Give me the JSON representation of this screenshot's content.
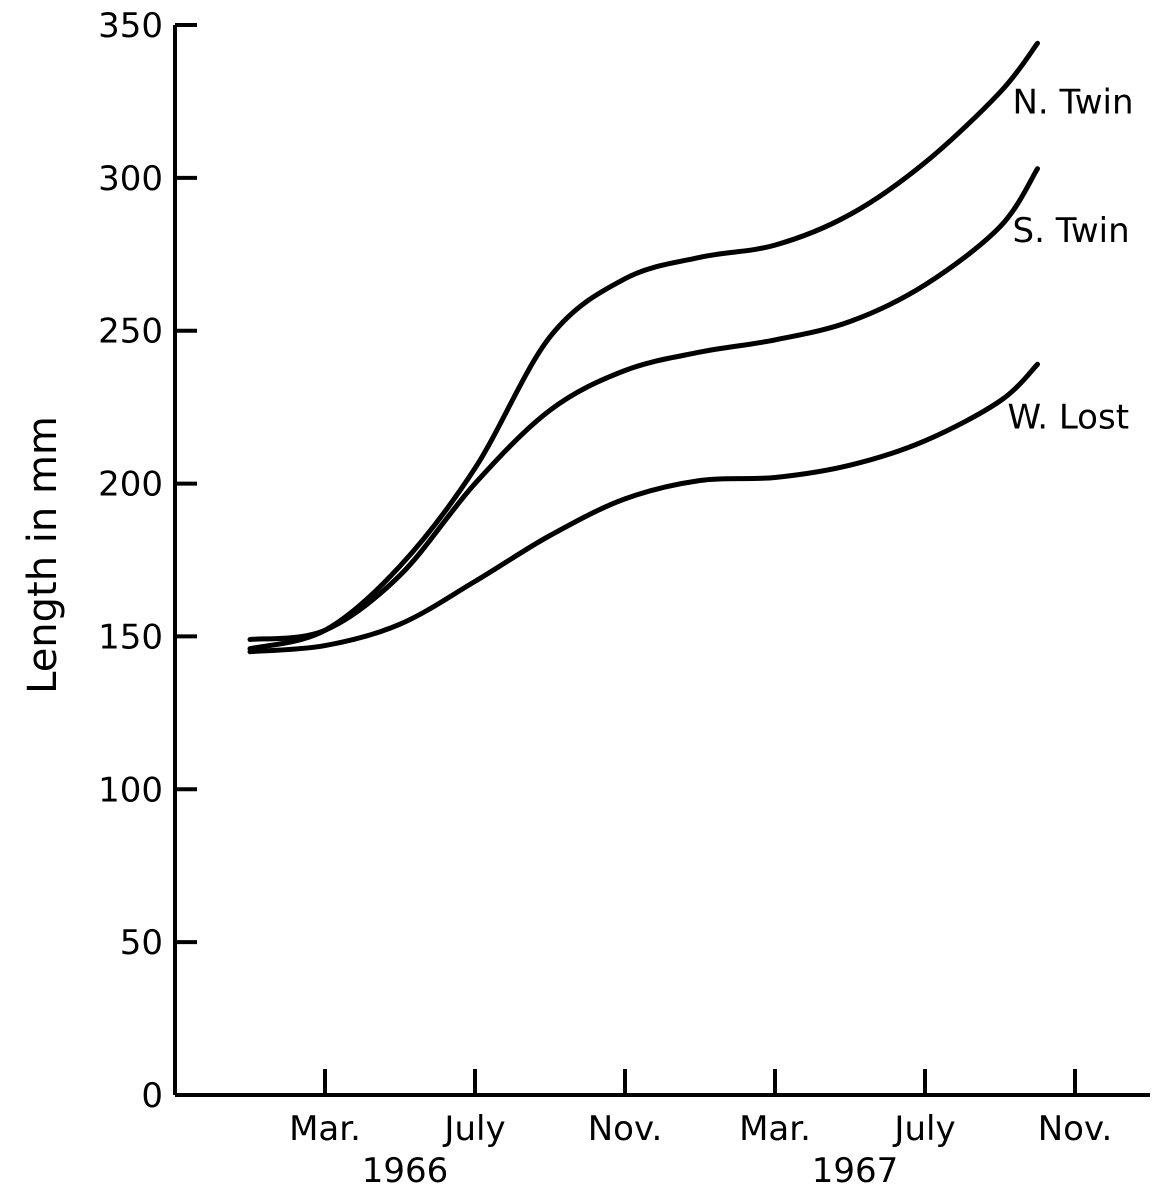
{
  "chart_data": {
    "type": "line",
    "title": "",
    "xlabel": "",
    "ylabel": "Length in mm",
    "ylim": [
      0,
      350
    ],
    "yticks": [
      0,
      50,
      100,
      150,
      200,
      250,
      300,
      350
    ],
    "grid": false,
    "x_ticks": [
      {
        "label": "Mar.",
        "month": 3,
        "year": 1966
      },
      {
        "label": "July",
        "month": 7,
        "year": 1966
      },
      {
        "label": "Nov.",
        "month": 11,
        "year": 1966
      },
      {
        "label": "Mar.",
        "month": 3,
        "year": 1967
      },
      {
        "label": "July",
        "month": 7,
        "year": 1967
      },
      {
        "label": "Nov.",
        "month": 11,
        "year": 1967
      }
    ],
    "year_labels": [
      {
        "label": "1966",
        "year": 1966
      },
      {
        "label": "1967",
        "year": 1967
      }
    ],
    "series": [
      {
        "name": "N. Twin",
        "points": [
          {
            "x": "1966-01",
            "y": 146
          },
          {
            "x": "1966-03",
            "y": 152
          },
          {
            "x": "1966-05",
            "y": 173
          },
          {
            "x": "1966-07",
            "y": 205
          },
          {
            "x": "1966-09",
            "y": 248
          },
          {
            "x": "1966-11",
            "y": 267
          },
          {
            "x": "1967-01",
            "y": 274
          },
          {
            "x": "1967-03",
            "y": 278
          },
          {
            "x": "1967-05",
            "y": 288
          },
          {
            "x": "1967-07",
            "y": 305
          },
          {
            "x": "1967-09",
            "y": 328
          },
          {
            "x": "1967-10",
            "y": 344
          }
        ]
      },
      {
        "name": "S. Twin",
        "points": [
          {
            "x": "1966-01",
            "y": 149
          },
          {
            "x": "1966-03",
            "y": 152
          },
          {
            "x": "1966-05",
            "y": 170
          },
          {
            "x": "1966-07",
            "y": 200
          },
          {
            "x": "1966-09",
            "y": 224
          },
          {
            "x": "1966-11",
            "y": 237
          },
          {
            "x": "1967-01",
            "y": 243
          },
          {
            "x": "1967-03",
            "y": 247
          },
          {
            "x": "1967-05",
            "y": 253
          },
          {
            "x": "1967-07",
            "y": 265
          },
          {
            "x": "1967-09",
            "y": 284
          },
          {
            "x": "1967-10",
            "y": 303
          }
        ]
      },
      {
        "name": "W. Lost",
        "points": [
          {
            "x": "1966-01",
            "y": 145
          },
          {
            "x": "1966-03",
            "y": 147
          },
          {
            "x": "1966-05",
            "y": 154
          },
          {
            "x": "1966-07",
            "y": 168
          },
          {
            "x": "1966-09",
            "y": 183
          },
          {
            "x": "1966-11",
            "y": 195
          },
          {
            "x": "1967-01",
            "y": 201
          },
          {
            "x": "1967-03",
            "y": 202
          },
          {
            "x": "1967-05",
            "y": 206
          },
          {
            "x": "1967-07",
            "y": 214
          },
          {
            "x": "1967-09",
            "y": 227
          },
          {
            "x": "1967-10",
            "y": 239
          }
        ]
      }
    ]
  }
}
